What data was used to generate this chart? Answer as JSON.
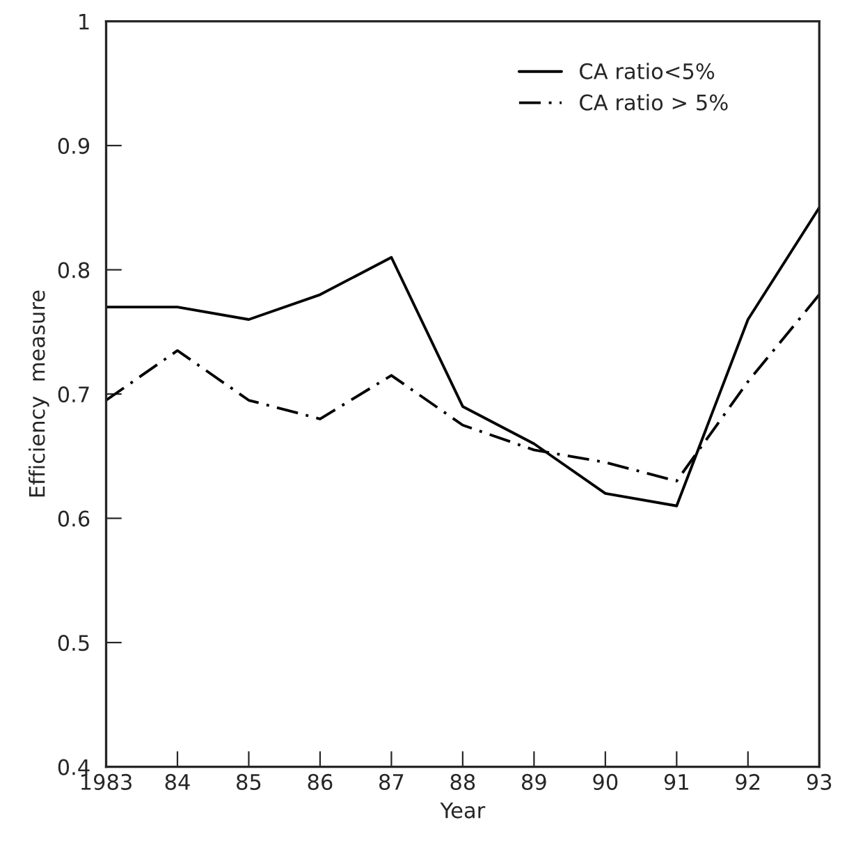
{
  "chart_data": {
    "type": "line",
    "xlabel": "Year",
    "ylabel": "Efficiency  measure",
    "x": [
      1983,
      1984,
      1985,
      1986,
      1987,
      1988,
      1989,
      1990,
      1991,
      1992,
      1993
    ],
    "series": [
      {
        "name": "CA ratio<5%",
        "color": "#000000",
        "line_style": "solid",
        "values": [
          0.77,
          0.77,
          0.76,
          0.78,
          0.81,
          0.69,
          0.66,
          0.62,
          0.61,
          0.76,
          0.85
        ]
      },
      {
        "name": "CA ratio > 5%",
        "color": "#000000",
        "line_style": "dashed",
        "values": [
          0.695,
          0.735,
          0.695,
          0.68,
          0.715,
          0.675,
          0.655,
          0.645,
          0.63,
          0.71,
          0.78
        ]
      }
    ],
    "xlim": [
      1983,
      1993
    ],
    "xticks": [
      {
        "value": 1983,
        "label": "1983"
      },
      {
        "value": 1984,
        "label": "84"
      },
      {
        "value": 1985,
        "label": "85"
      },
      {
        "value": 1986,
        "label": "86"
      },
      {
        "value": 1987,
        "label": "87"
      },
      {
        "value": 1988,
        "label": "88"
      },
      {
        "value": 1989,
        "label": "89"
      },
      {
        "value": 1990,
        "label": "90"
      },
      {
        "value": 1991,
        "label": "91"
      },
      {
        "value": 1992,
        "label": "92"
      },
      {
        "value": 1993,
        "label": "93"
      }
    ],
    "ylim": [
      0.4,
      1
    ],
    "yticks": [
      {
        "value": 0.4,
        "label": "0.4"
      },
      {
        "value": 0.5,
        "label": "0.5"
      },
      {
        "value": 0.6,
        "label": "0.6"
      },
      {
        "value": 0.7,
        "label": "0.7"
      },
      {
        "value": 0.8,
        "label": "0.8"
      },
      {
        "value": 0.9,
        "label": "0.9"
      },
      {
        "value": 1,
        "label": "1"
      }
    ],
    "grid": false,
    "legend": "top right",
    "marker": "none"
  }
}
